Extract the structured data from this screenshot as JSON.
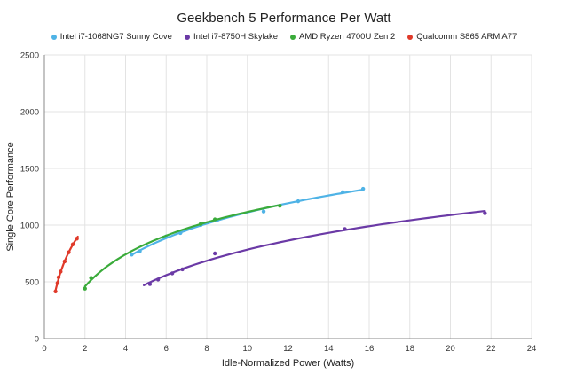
{
  "chart_data": {
    "type": "scatter",
    "title": "Geekbench 5 Performance Per Watt",
    "xlabel": "Idle-Normalized Power (Watts)",
    "ylabel": "Single Core Performance",
    "xlim": [
      0,
      24
    ],
    "ylim": [
      0,
      2500
    ],
    "x_ticks": [
      0,
      2,
      4,
      6,
      8,
      10,
      12,
      14,
      16,
      18,
      20,
      22,
      24
    ],
    "y_ticks": [
      0,
      500,
      1000,
      1500,
      2000,
      2500
    ],
    "grid": true,
    "legend_position": "top",
    "trendlines": true,
    "series": [
      {
        "name": "Intel i7-1068NG7 Sunny Cove",
        "color": "#4fb3e6",
        "points": [
          [
            4.3,
            740
          ],
          [
            4.7,
            770
          ],
          [
            6.0,
            900
          ],
          [
            6.7,
            930
          ],
          [
            7.7,
            1000
          ],
          [
            8.5,
            1040
          ],
          [
            10.8,
            1120
          ],
          [
            12.5,
            1210
          ],
          [
            14.7,
            1290
          ],
          [
            15.7,
            1320
          ]
        ],
        "trend_range": [
          4.3,
          15.7
        ]
      },
      {
        "name": "Intel i7-8750H Skylake",
        "color": "#6b3aa6",
        "points": [
          [
            5.2,
            480
          ],
          [
            5.6,
            520
          ],
          [
            6.3,
            575
          ],
          [
            6.8,
            610
          ],
          [
            8.4,
            750
          ],
          [
            14.8,
            965
          ],
          [
            21.7,
            1105
          ]
        ],
        "trend_range": [
          4.9,
          21.7
        ]
      },
      {
        "name": "AMD Ryzen 4700U Zen 2",
        "color": "#3aab3a",
        "points": [
          [
            2.0,
            440
          ],
          [
            2.3,
            535
          ],
          [
            7.7,
            1010
          ],
          [
            8.4,
            1050
          ],
          [
            11.6,
            1170
          ]
        ],
        "trend_range": [
          2.0,
          11.6
        ]
      },
      {
        "name": "Qualcomm S865 ARM A77",
        "color": "#e03a2a",
        "points": [
          [
            0.55,
            415
          ],
          [
            0.65,
            490
          ],
          [
            0.7,
            540
          ],
          [
            0.8,
            590
          ],
          [
            1.0,
            680
          ],
          [
            1.2,
            760
          ],
          [
            1.4,
            830
          ],
          [
            1.6,
            880
          ]
        ],
        "trend_range": [
          0.55,
          1.65
        ]
      }
    ]
  }
}
